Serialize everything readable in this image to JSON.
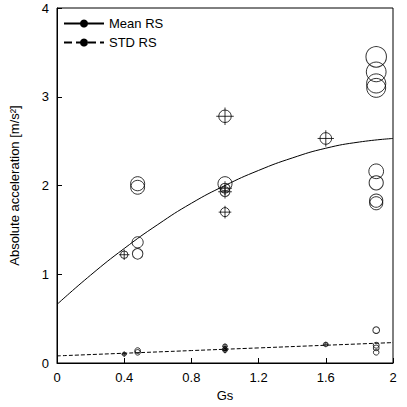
{
  "chart_data": {
    "type": "scatter",
    "x_label": "Gs",
    "y_label": "Absolute acceleration [m/s²]",
    "xlim": [
      0,
      2
    ],
    "xticks": [
      0,
      0.4,
      0.8,
      1.2,
      1.6,
      2
    ],
    "ylim": [
      0,
      4
    ],
    "yticks": [
      0,
      1,
      2,
      3,
      4
    ],
    "grid": false,
    "legend": "upper left",
    "series": [
      {
        "name": "Mean RS",
        "type": "line",
        "line_style": "solid",
        "color": "#000000",
        "x": [
          0,
          0.2,
          0.4,
          0.6,
          0.8,
          1.0,
          1.2,
          1.4,
          1.6,
          1.8,
          2.0
        ],
        "values": [
          0.66,
          0.99,
          1.29,
          1.56,
          1.8,
          2.0,
          2.17,
          2.31,
          2.42,
          2.49,
          2.53
        ]
      },
      {
        "name": "STD RS",
        "type": "line",
        "line_style": "dashed",
        "color": "#000000",
        "x": [
          0,
          0.4,
          0.8,
          1.2,
          1.6,
          2.0
        ],
        "values": [
          0.08,
          0.11,
          0.14,
          0.17,
          0.2,
          0.23
        ]
      },
      {
        "type": "scatter",
        "marker": "circle",
        "color": "#000000",
        "x": [
          0.48,
          0.48,
          0.48,
          0.48,
          0.48,
          0.48,
          1.0,
          1.9,
          1.9,
          1.9,
          1.9,
          1.9,
          1.9,
          1.9,
          1.9,
          1.9,
          1.9,
          1.9,
          1.9
        ],
        "values": [
          2.02,
          1.98,
          1.36,
          1.23,
          0.14,
          0.12,
          2.02,
          3.45,
          3.28,
          3.15,
          3.1,
          2.16,
          2.03,
          1.83,
          1.8,
          0.37,
          0.2,
          0.17,
          0.12
        ]
      },
      {
        "type": "scatter",
        "marker": "crosshair",
        "color": "#000000",
        "x": [
          0.4,
          0.4,
          1.0,
          1.0,
          1.0,
          1.0,
          1.0,
          1.0,
          1.0,
          1.6,
          1.6
        ],
        "values": [
          1.22,
          0.1,
          2.78,
          1.97,
          1.93,
          1.7,
          0.19,
          0.16,
          0.14,
          2.53,
          0.21
        ]
      }
    ]
  }
}
